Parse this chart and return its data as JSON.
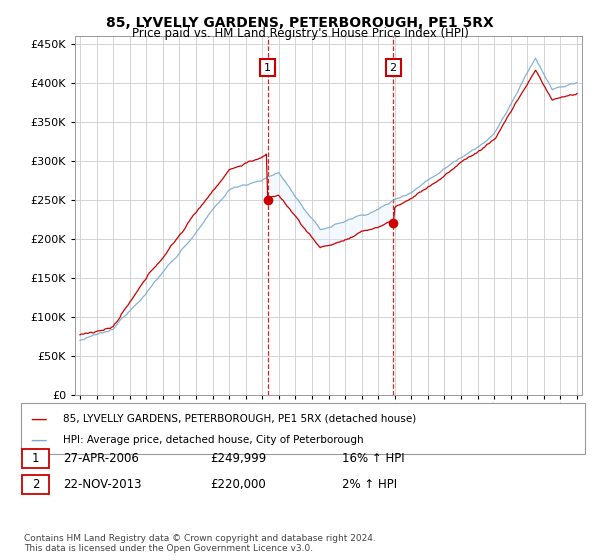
{
  "title": "85, LYVELLY GARDENS, PETERBOROUGH, PE1 5RX",
  "subtitle": "Price paid vs. HM Land Registry's House Price Index (HPI)",
  "legend_line1": "85, LYVELLY GARDENS, PETERBOROUGH, PE1 5RX (detached house)",
  "legend_line2": "HPI: Average price, detached house, City of Peterborough",
  "annotation1": {
    "label": "1",
    "date": "27-APR-2006",
    "price": "£249,999",
    "hpi": "16% ↑ HPI"
  },
  "annotation2": {
    "label": "2",
    "date": "22-NOV-2013",
    "price": "£220,000",
    "hpi": "2% ↑ HPI"
  },
  "footnote": "Contains HM Land Registry data © Crown copyright and database right 2024.\nThis data is licensed under the Open Government Licence v3.0.",
  "house_color": "#cc0000",
  "hpi_color": "#7aaad0",
  "shaded_color": "#ddeeff",
  "annotation_box_color": "#cc0000",
  "ylim": [
    0,
    460000
  ],
  "yticks": [
    0,
    50000,
    100000,
    150000,
    200000,
    250000,
    300000,
    350000,
    400000,
    450000
  ],
  "sale1_year": 2006.32,
  "sale2_year": 2013.9,
  "sale1_price": 249999,
  "sale2_price": 220000
}
